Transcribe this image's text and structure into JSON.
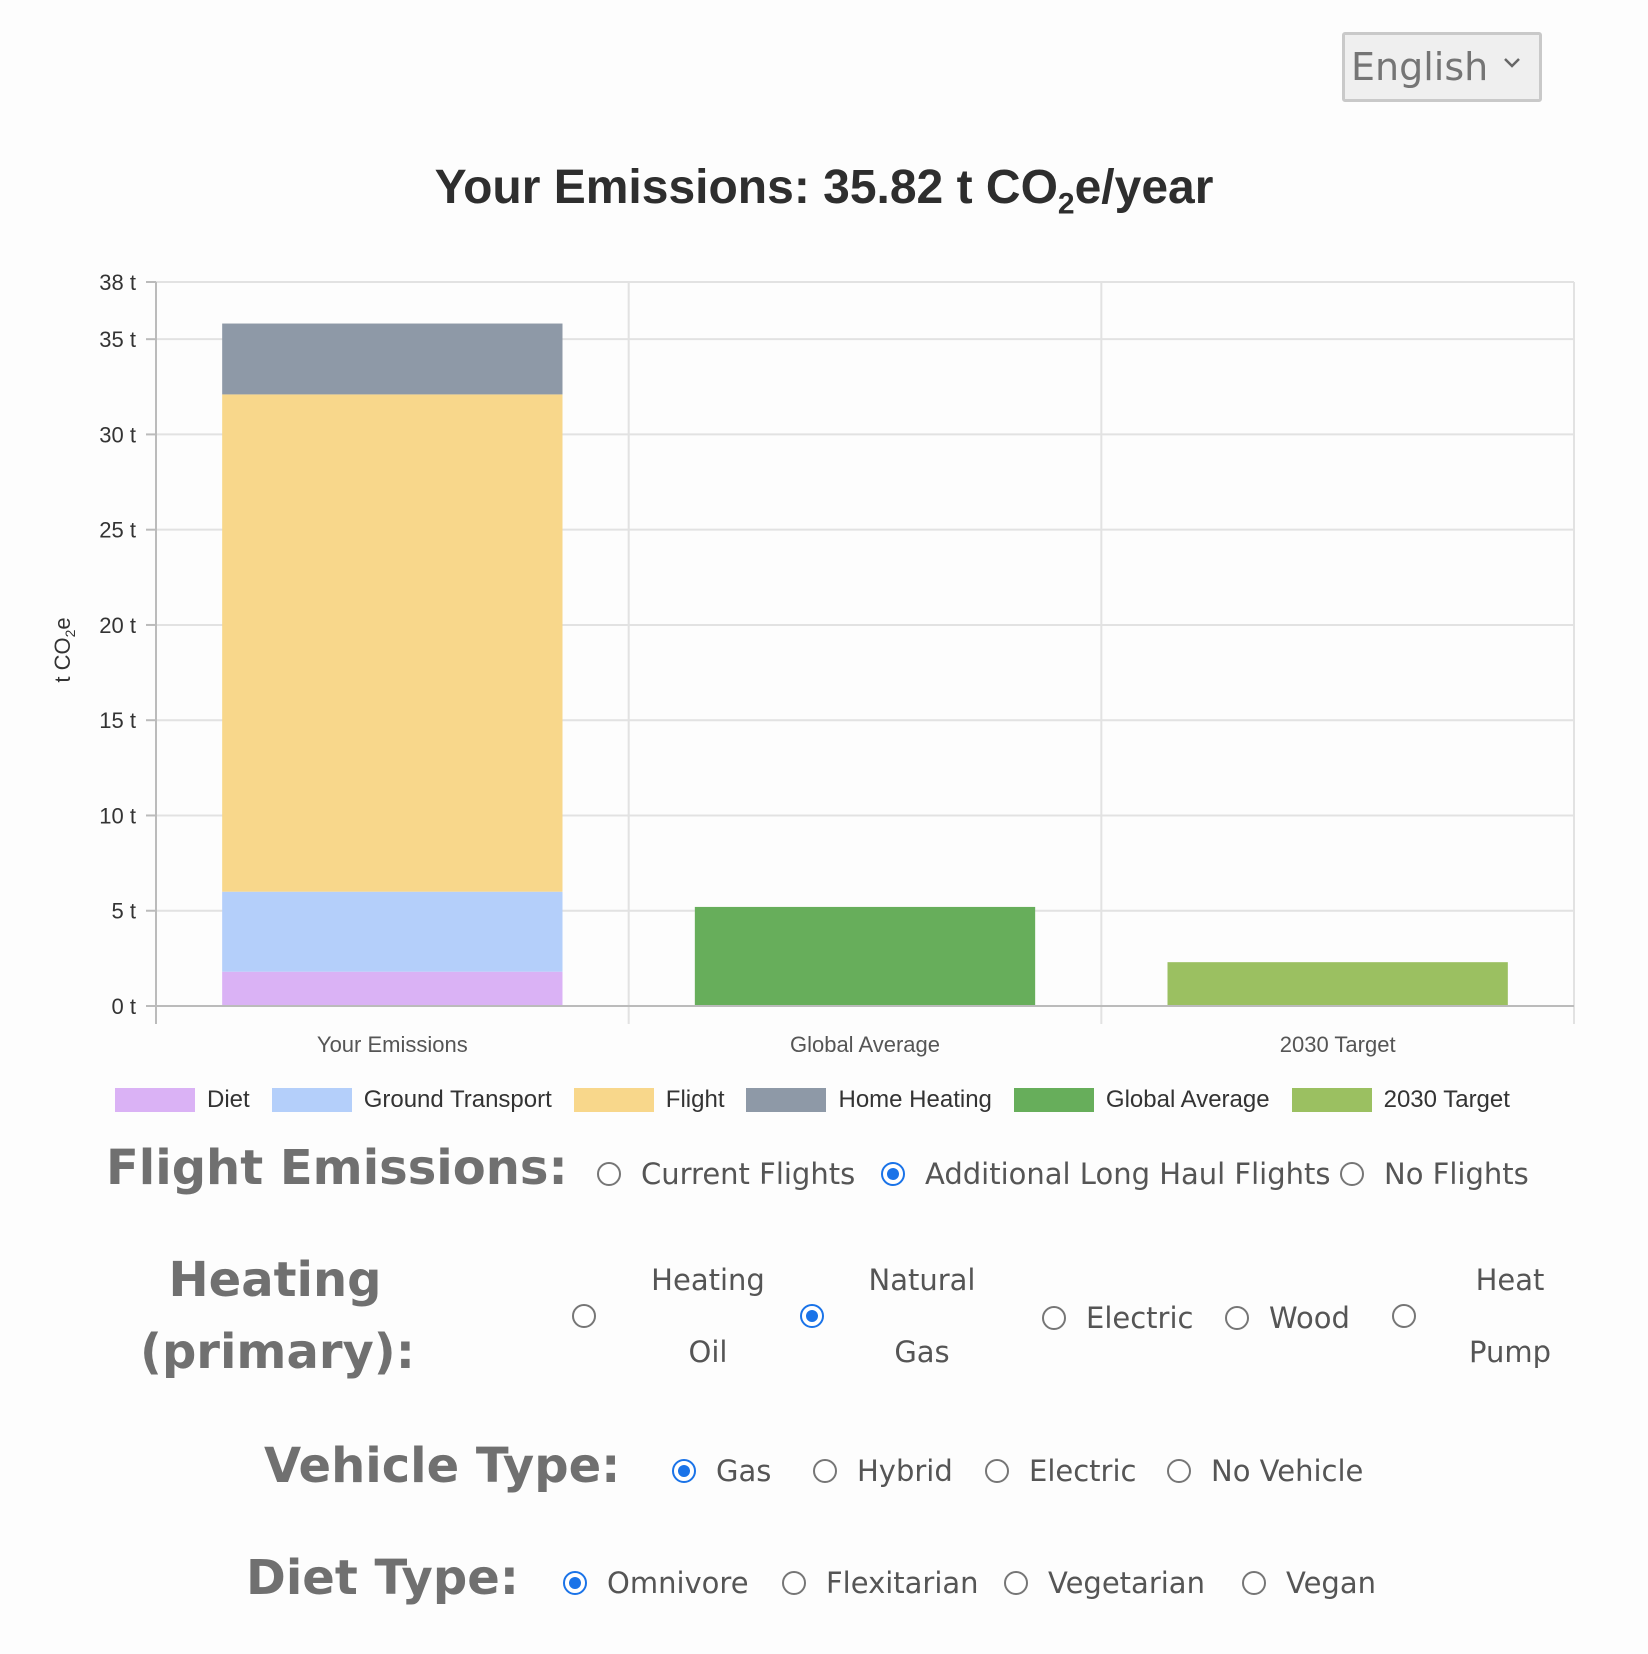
{
  "language": {
    "selected": "English"
  },
  "chart_data": {
    "type": "bar",
    "stacked": true,
    "title_prefix": "Your Emissions: 35.82 t CO",
    "title_sub": "2",
    "title_suffix": "e/year",
    "ylabel_prefix": "t CO",
    "ylabel_sub": "2",
    "ylabel_suffix": "e",
    "categories": [
      "Your Emissions",
      "Global Average",
      "2030 Target"
    ],
    "yticks": [
      0,
      5,
      10,
      15,
      20,
      25,
      30,
      35,
      38
    ],
    "ytick_labels": [
      "0 t",
      "5 t",
      "10 t",
      "15 t",
      "20 t",
      "25 t",
      "30 t",
      "35 t",
      "38 t"
    ],
    "ylim": [
      0,
      38
    ],
    "grid": true,
    "legend_position": "bottom",
    "series": [
      {
        "name": "Diet",
        "color": "#dab2f5",
        "values": [
          1.8,
          0,
          0
        ]
      },
      {
        "name": "Ground Transport",
        "color": "#b4cffa",
        "values": [
          4.2,
          0,
          0
        ]
      },
      {
        "name": "Flight",
        "color": "#f8d78b",
        "values": [
          26.1,
          0,
          0
        ]
      },
      {
        "name": "Home Heating",
        "color": "#8e99a7",
        "values": [
          3.72,
          0,
          0
        ]
      },
      {
        "name": "Global Average",
        "color": "#67ae5b",
        "values": [
          0,
          5.2,
          0
        ]
      },
      {
        "name": "2030 Target",
        "color": "#9bc061",
        "values": [
          0,
          0,
          2.3
        ]
      }
    ]
  },
  "form": {
    "flight": {
      "label": "Flight Emissions:",
      "options": [
        "Current Flights",
        "Additional Long Haul Flights",
        "No Flights"
      ],
      "selected": "Additional Long Haul Flights"
    },
    "heating": {
      "label_line1": "Heating",
      "label_line2": "(primary):",
      "options": [
        "Heating Oil",
        "Natural Gas",
        "Electric",
        "Wood",
        "Heat Pump"
      ],
      "selected": "Natural Gas"
    },
    "vehicle": {
      "label": "Vehicle Type:",
      "options": [
        "Gas",
        "Hybrid",
        "Electric",
        "No Vehicle"
      ],
      "selected": "Gas"
    },
    "diet": {
      "label": "Diet Type:",
      "options": [
        "Omnivore",
        "Flexitarian",
        "Vegetarian",
        "Vegan"
      ],
      "selected": "Omnivore"
    }
  }
}
